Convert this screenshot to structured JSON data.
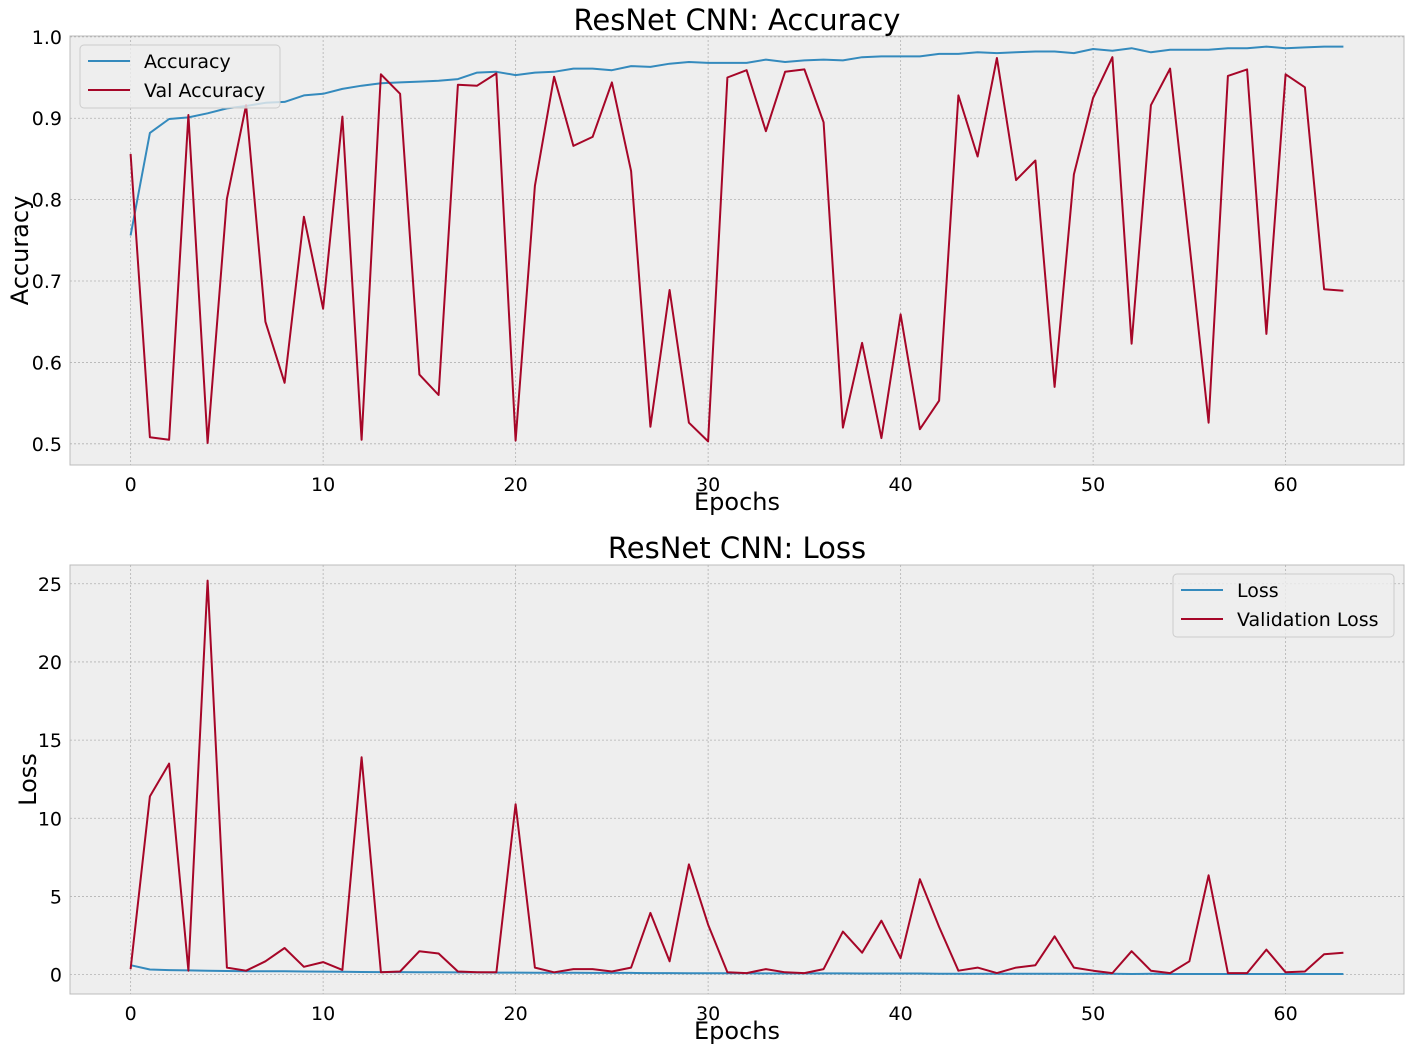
{
  "chart_data": [
    {
      "type": "line",
      "title": "ResNet CNN: Accuracy",
      "xlabel": "Epochs",
      "ylabel": "Accuracy",
      "xlim": [
        -3.15,
        66.15
      ],
      "ylim": [
        0.474,
        1.001
      ],
      "xticks": [
        0,
        10,
        20,
        30,
        40,
        50,
        60
      ],
      "yticks": [
        0.5,
        0.6,
        0.7,
        0.8,
        0.9,
        1.0
      ],
      "ytick_labels": [
        "0.5",
        "0.6",
        "0.7",
        "0.8",
        "0.9",
        "1.0"
      ],
      "grid": true,
      "legend_position": "top-left",
      "x": [
        0,
        1,
        2,
        3,
        4,
        5,
        6,
        7,
        8,
        9,
        10,
        11,
        12,
        13,
        14,
        15,
        16,
        17,
        18,
        19,
        20,
        21,
        22,
        23,
        24,
        25,
        26,
        27,
        28,
        29,
        30,
        31,
        32,
        33,
        34,
        35,
        36,
        37,
        38,
        39,
        40,
        41,
        42,
        43,
        44,
        45,
        46,
        47,
        48,
        49,
        50,
        51,
        52,
        53,
        54,
        55,
        56,
        57,
        58,
        59,
        60,
        61,
        62,
        63
      ],
      "series": [
        {
          "name": "Accuracy",
          "color": "#348abd",
          "values": [
            0.756,
            0.882,
            0.899,
            0.901,
            0.906,
            0.912,
            0.915,
            0.919,
            0.92,
            0.928,
            0.93,
            0.936,
            0.94,
            0.943,
            0.944,
            0.945,
            0.946,
            0.948,
            0.956,
            0.957,
            0.953,
            0.956,
            0.957,
            0.961,
            0.961,
            0.959,
            0.964,
            0.963,
            0.967,
            0.969,
            0.968,
            0.968,
            0.968,
            0.972,
            0.969,
            0.971,
            0.972,
            0.971,
            0.975,
            0.976,
            0.976,
            0.976,
            0.979,
            0.979,
            0.981,
            0.98,
            0.981,
            0.982,
            0.982,
            0.98,
            0.985,
            0.983,
            0.986,
            0.981,
            0.984,
            0.984,
            0.984,
            0.986,
            0.986,
            0.988,
            0.986,
            0.987,
            0.988,
            0.988
          ]
        },
        {
          "name": "Val Accuracy",
          "color": "#a60628",
          "values": [
            0.856,
            0.508,
            0.505,
            0.904,
            0.501,
            0.801,
            0.916,
            0.65,
            0.575,
            0.779,
            0.666,
            0.902,
            0.505,
            0.954,
            0.93,
            0.585,
            0.56,
            0.941,
            0.94,
            0.955,
            0.504,
            0.817,
            0.951,
            0.866,
            0.877,
            0.944,
            0.835,
            0.521,
            0.689,
            0.526,
            0.503,
            0.95,
            0.959,
            0.884,
            0.957,
            0.96,
            0.895,
            0.52,
            0.624,
            0.507,
            0.659,
            0.518,
            0.553,
            0.928,
            0.853,
            0.974,
            0.824,
            0.848,
            0.57,
            0.831,
            0.925,
            0.975,
            0.623,
            0.916,
            0.961,
            0.746,
            0.526,
            0.952,
            0.96,
            0.635,
            0.954,
            0.938,
            0.69,
            0.688
          ]
        }
      ]
    },
    {
      "type": "line",
      "title": "ResNet CNN: Loss",
      "xlabel": "Epochs",
      "ylabel": "Loss",
      "xlim": [
        -3.15,
        66.15
      ],
      "ylim": [
        -1.24,
        26.2
      ],
      "xticks": [
        0,
        10,
        20,
        30,
        40,
        50,
        60
      ],
      "yticks": [
        0,
        5,
        10,
        15,
        20,
        25
      ],
      "ytick_labels": [
        "0",
        "5",
        "10",
        "15",
        "20",
        "25"
      ],
      "grid": true,
      "legend_position": "top-right",
      "x": [
        0,
        1,
        2,
        3,
        4,
        5,
        6,
        7,
        8,
        9,
        10,
        11,
        12,
        13,
        14,
        15,
        16,
        17,
        18,
        19,
        20,
        21,
        22,
        23,
        24,
        25,
        26,
        27,
        28,
        29,
        30,
        31,
        32,
        33,
        34,
        35,
        36,
        37,
        38,
        39,
        40,
        41,
        42,
        43,
        44,
        45,
        46,
        47,
        48,
        49,
        50,
        51,
        52,
        53,
        54,
        55,
        56,
        57,
        58,
        59,
        60,
        61,
        62,
        63
      ],
      "series": [
        {
          "name": "Loss",
          "color": "#348abd",
          "values": [
            0.6,
            0.33,
            0.29,
            0.27,
            0.25,
            0.23,
            0.22,
            0.21,
            0.21,
            0.2,
            0.19,
            0.18,
            0.17,
            0.16,
            0.16,
            0.15,
            0.15,
            0.14,
            0.14,
            0.13,
            0.13,
            0.12,
            0.12,
            0.12,
            0.11,
            0.11,
            0.11,
            0.1,
            0.1,
            0.09,
            0.09,
            0.09,
            0.09,
            0.08,
            0.08,
            0.08,
            0.08,
            0.08,
            0.07,
            0.07,
            0.07,
            0.07,
            0.06,
            0.06,
            0.06,
            0.06,
            0.06,
            0.05,
            0.05,
            0.05,
            0.05,
            0.05,
            0.04,
            0.05,
            0.04,
            0.04,
            0.04,
            0.04,
            0.04,
            0.04,
            0.04,
            0.04,
            0.04,
            0.04
          ]
        },
        {
          "name": "Validation Loss",
          "color": "#a60628",
          "values": [
            0.35,
            11.4,
            13.5,
            0.25,
            25.2,
            0.45,
            0.25,
            0.85,
            1.7,
            0.5,
            0.8,
            0.3,
            13.9,
            0.15,
            0.2,
            1.5,
            1.35,
            0.2,
            0.15,
            0.15,
            10.9,
            0.45,
            0.15,
            0.35,
            0.35,
            0.2,
            0.45,
            3.95,
            0.85,
            7.05,
            3.2,
            0.15,
            0.1,
            0.35,
            0.15,
            0.1,
            0.35,
            2.75,
            1.4,
            3.45,
            1.05,
            6.1,
            3.05,
            0.25,
            0.45,
            0.1,
            0.45,
            0.6,
            2.45,
            0.45,
            0.25,
            0.1,
            1.5,
            0.25,
            0.1,
            0.85,
            6.35,
            0.1,
            0.1,
            1.6,
            0.15,
            0.2,
            1.3,
            1.4
          ]
        }
      ]
    }
  ]
}
